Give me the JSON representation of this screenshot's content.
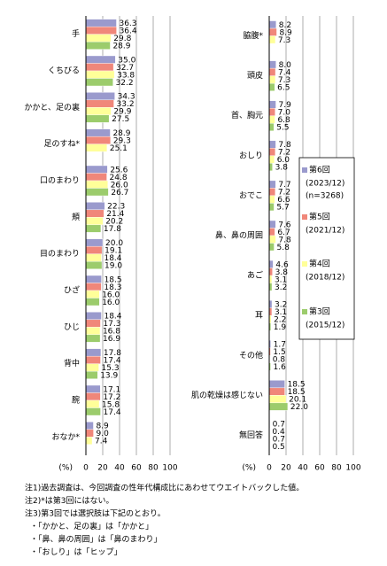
{
  "chart_data": [
    {
      "type": "bar",
      "orientation": "horizontal",
      "xlabel": "(%)",
      "xlim": [
        0,
        100
      ],
      "xticks": [
        0,
        20,
        40,
        60,
        80,
        100
      ],
      "grid": true,
      "categories": [
        "手",
        "くちびる",
        "かかと、足の裏",
        "足のすね*",
        "口のまわり",
        "頬",
        "目のまわり",
        "ひざ",
        "ひじ",
        "背中",
        "腕",
        "おなか*"
      ],
      "series": [
        {
          "color": "#9a9acd",
          "values": [
            36.3,
            35.0,
            34.3,
            28.9,
            25.6,
            22.3,
            20.0,
            18.5,
            18.4,
            17.8,
            17.1,
            8.9
          ],
          "value_labels": [
            "36.3",
            "35.0",
            "34.3",
            "28.9",
            "25.6",
            "22.3",
            "20.0",
            "18.5",
            "18.4",
            "17.8",
            "17.1",
            "8.9"
          ]
        },
        {
          "color": "#f0877a",
          "values": [
            36.4,
            32.7,
            33.2,
            29.3,
            24.8,
            21.4,
            19.1,
            18.3,
            17.3,
            17.4,
            17.2,
            9.0
          ],
          "value_labels": [
            "36.4",
            "32.7",
            "33.2",
            "29.3",
            "24.8",
            "21.4",
            "19.1",
            "18.3",
            "17.3",
            "17.4",
            "17.2",
            "9.0"
          ]
        },
        {
          "color": "#ffff99",
          "values": [
            29.8,
            33.8,
            29.9,
            25.1,
            26.0,
            20.2,
            18.4,
            16.0,
            16.8,
            15.3,
            15.8,
            7.4
          ],
          "value_labels": [
            "29.8",
            "33.8",
            "29.9",
            "25.1",
            "26.0",
            "20.2",
            "18.4",
            "16.0",
            "16.8",
            "15.3",
            "15.8",
            "7.4"
          ]
        },
        {
          "color": "#9ccc6c",
          "values": [
            28.9,
            32.2,
            27.5,
            null,
            26.7,
            17.8,
            19.0,
            16.0,
            16.9,
            13.9,
            17.4,
            null
          ],
          "value_labels": [
            "28.9",
            "32.2",
            "27.5",
            null,
            "26.7",
            "17.8",
            "19.0",
            "16.0",
            "16.9",
            "13.9",
            "17.4",
            null
          ]
        }
      ]
    },
    {
      "type": "bar",
      "orientation": "horizontal",
      "xlabel": "(%)",
      "xlim": [
        0,
        100
      ],
      "xticks": [
        0,
        20,
        40,
        60,
        80,
        100
      ],
      "grid": true,
      "legend_note": "(n=3268)",
      "categories": [
        "脇腹*",
        "頭皮",
        "首、胸元",
        "おしり",
        "おでこ",
        "鼻、鼻の周囲",
        "あご",
        "耳",
        "その他",
        "肌の乾燥は感じない",
        "無回答"
      ],
      "series": [
        {
          "name": "第6回",
          "period": "(2023/12)",
          "color": "#9a9acd",
          "values": [
            8.2,
            8.0,
            7.9,
            7.8,
            7.7,
            7.6,
            4.6,
            3.2,
            1.7,
            18.5,
            0.7
          ],
          "value_labels": [
            "8.2",
            "8.0",
            "7.9",
            "7.8",
            "7.7",
            "7.6",
            "4.6",
            "3.2",
            "1.7",
            "18.5",
            "0.7"
          ]
        },
        {
          "name": "第5回",
          "period": "(2021/12)",
          "color": "#f0877a",
          "values": [
            8.9,
            7.4,
            7.0,
            7.2,
            7.2,
            6.7,
            3.8,
            3.1,
            1.5,
            18.5,
            0.4
          ],
          "value_labels": [
            "8.9",
            "7.4",
            "7.0",
            "7.2",
            "7.2",
            "6.7",
            "3.8",
            "3.1",
            "1.5",
            "18.5",
            "0.4"
          ]
        },
        {
          "name": "第4回",
          "period": "(2018/12)",
          "color": "#ffff99",
          "values": [
            7.3,
            7.3,
            6.8,
            6.0,
            6.6,
            7.8,
            3.1,
            2.2,
            0.8,
            20.1,
            0.7
          ],
          "value_labels": [
            "7.3",
            "7.3",
            "6.8",
            "6.0",
            "6.6",
            "7.8",
            "3.1",
            "2.2",
            "0.8",
            "20.1",
            "0.7"
          ]
        },
        {
          "name": "第3回",
          "period": "(2015/12)",
          "color": "#9ccc6c",
          "values": [
            null,
            6.5,
            5.5,
            3.8,
            5.7,
            5.8,
            3.2,
            1.9,
            1.6,
            22.0,
            0.5
          ],
          "value_labels": [
            null,
            "6.5",
            "5.5",
            "3.8",
            "5.7",
            "5.8",
            "3.2",
            "1.9",
            "1.6",
            "22.0",
            "0.5"
          ]
        }
      ]
    }
  ],
  "notes": [
    "注1)過去調査は、今回調査の性年代構成比にあわせてウエイトバックした値。",
    "注2)*は第3回にはない。",
    "注3)第3回では選択肢は下記のとおり。",
    "・「かかと、足の裏」は「かかと」",
    "・「鼻、鼻の周囲」は「鼻のまわり」",
    "・「おしり」は「ヒップ」"
  ]
}
